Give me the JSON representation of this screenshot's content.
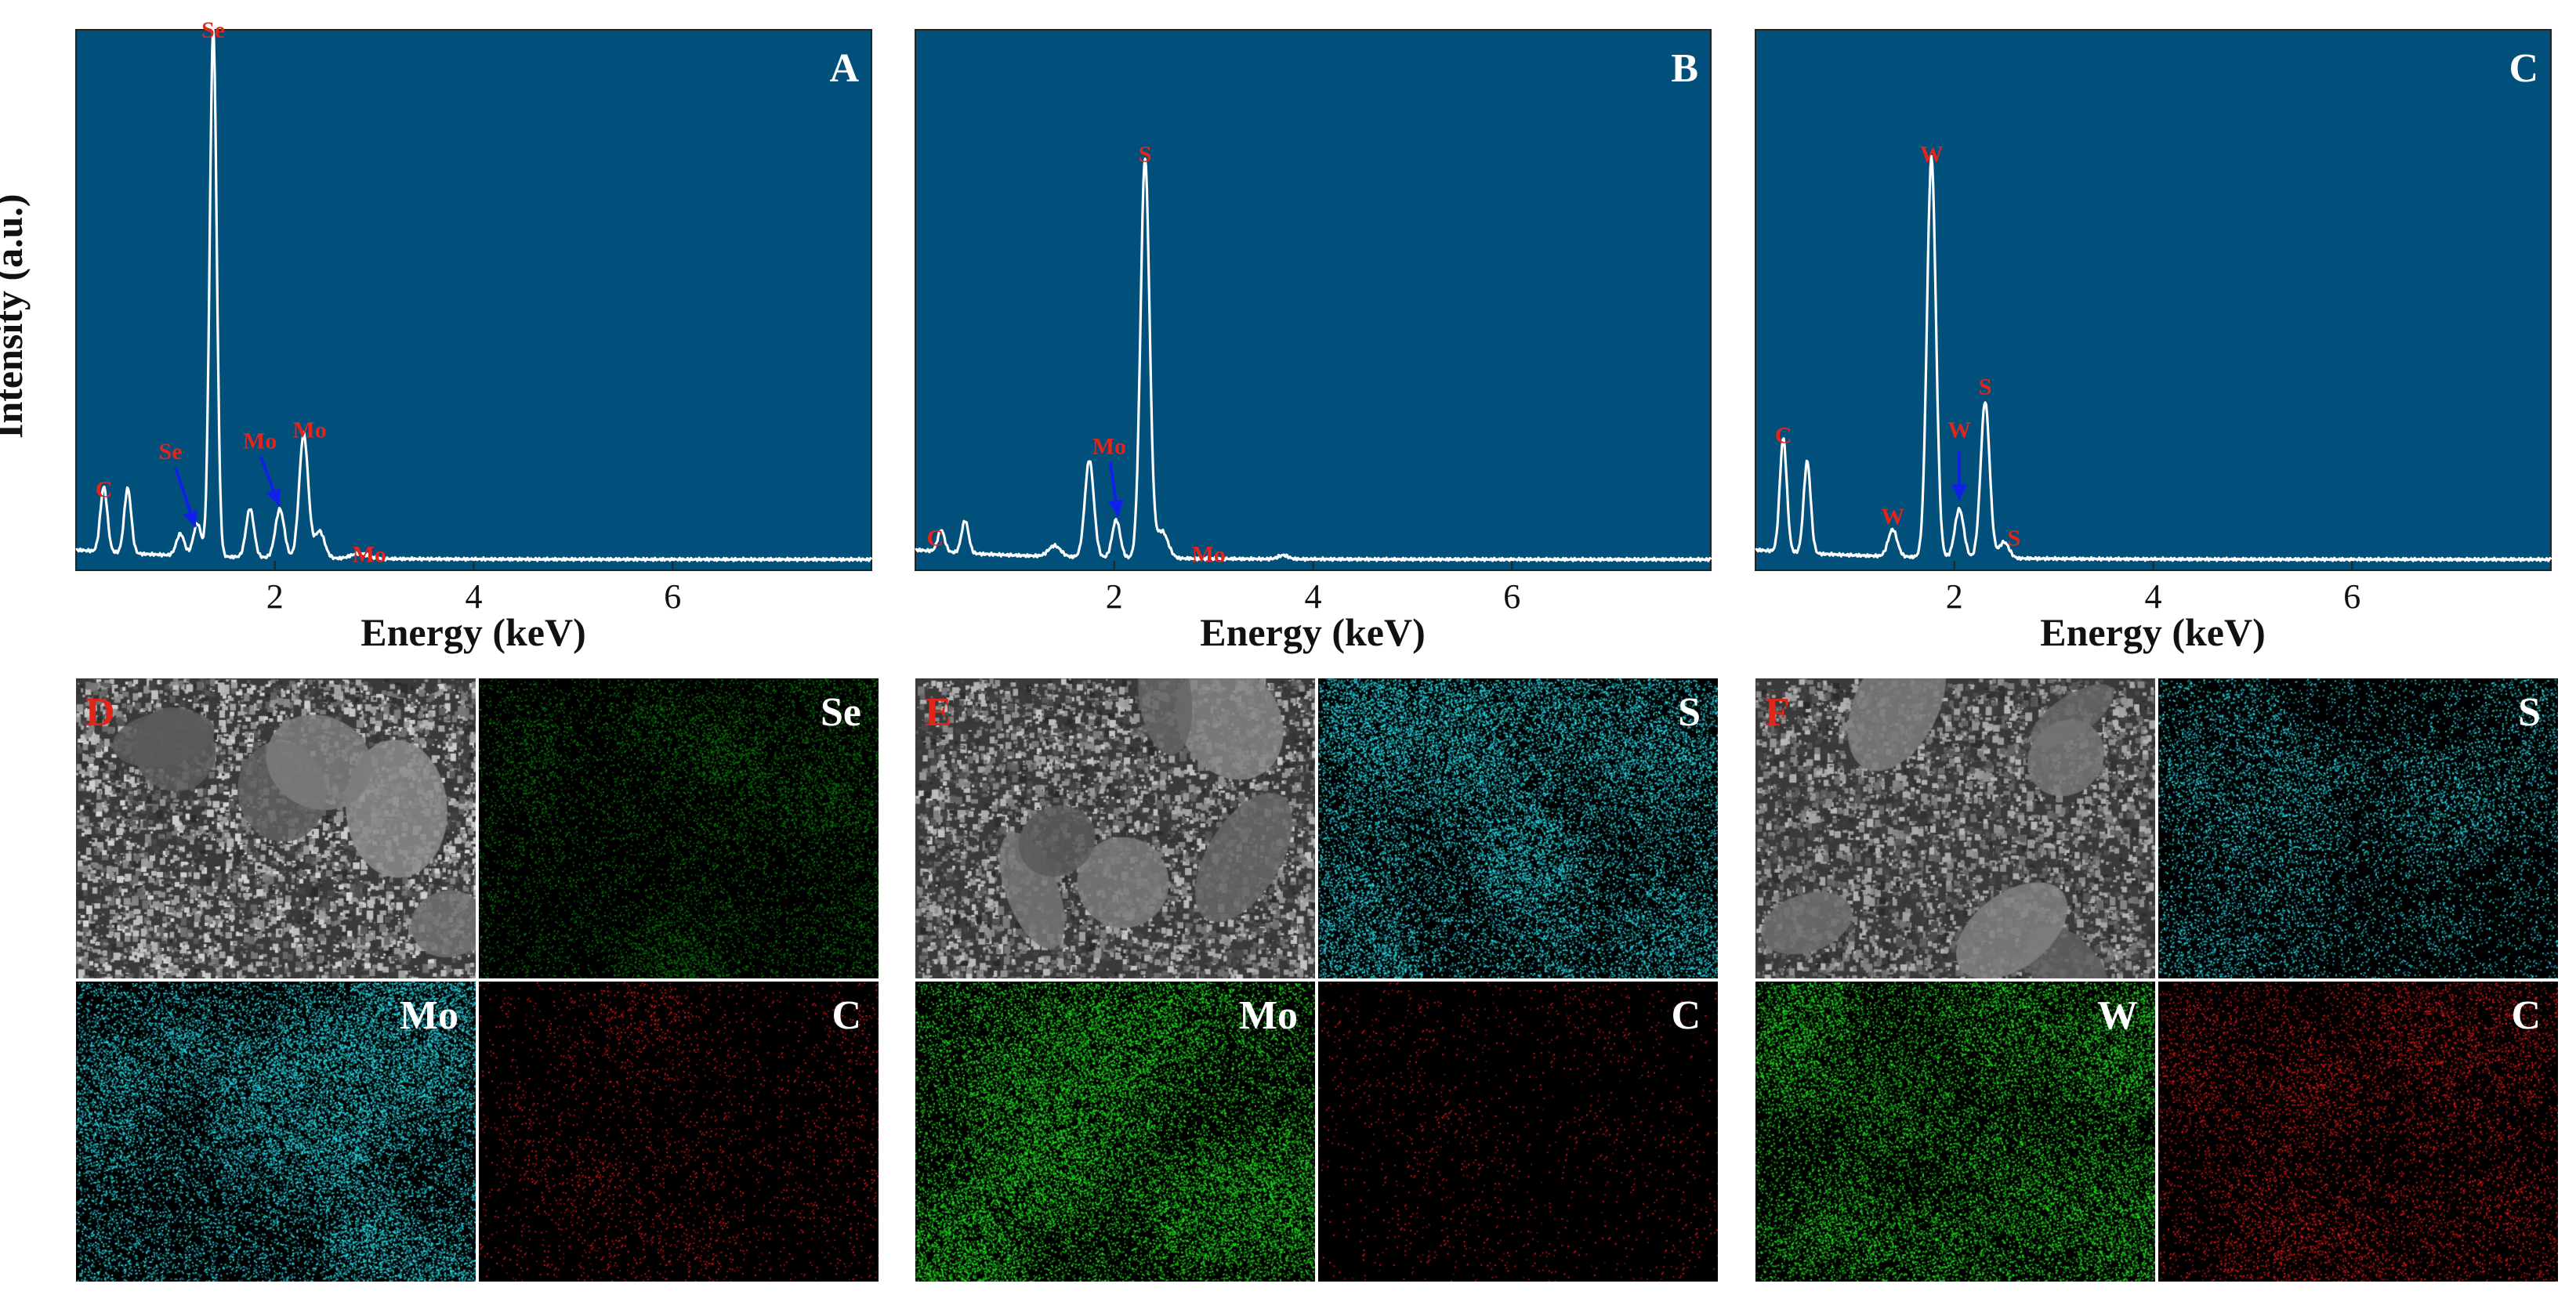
{
  "figure": {
    "y_axis_label": "Intensity (a.u.)",
    "x_axis_label": "Energy (keV)"
  },
  "colors": {
    "plot_bg": "#01507c",
    "spectrum_line": "#ffffff",
    "peak_label": "#e1251b",
    "arrow": "#1020e8",
    "panel_letter": "#ffffff",
    "axis": "#222222",
    "map_green": "#1fe01f",
    "map_cyan": "#27dce8",
    "map_red": "#e81818"
  },
  "chart_data": [
    {
      "type": "line",
      "panel": "A",
      "xlabel": "Energy (keV)",
      "ylabel": "Intensity (a.u.)",
      "xlim": [
        0,
        8
      ],
      "ylim": [
        0,
        1.0
      ],
      "x_ticks": [
        2,
        4,
        6
      ],
      "x_tick_labels": [
        "2",
        "4",
        "6"
      ],
      "baseline": 0.02,
      "peaks": [
        {
          "x": 0.28,
          "h": 0.12,
          "w": 0.035
        },
        {
          "x": 0.52,
          "h": 0.12,
          "w": 0.035
        },
        {
          "x": 1.05,
          "h": 0.04,
          "w": 0.04
        },
        {
          "x": 1.22,
          "h": 0.06,
          "w": 0.04
        },
        {
          "x": 1.38,
          "h": 0.98,
          "w": 0.035
        },
        {
          "x": 1.75,
          "h": 0.09,
          "w": 0.04
        },
        {
          "x": 2.05,
          "h": 0.09,
          "w": 0.045
        },
        {
          "x": 2.29,
          "h": 0.23,
          "w": 0.045
        },
        {
          "x": 2.45,
          "h": 0.05,
          "w": 0.05
        },
        {
          "x": 2.85,
          "h": 0.01,
          "w": 0.08
        }
      ],
      "annotations": [
        {
          "text": "Se",
          "x": 1.38,
          "y": 1.0
        },
        {
          "text": "C",
          "x": 0.28,
          "y": 0.15
        },
        {
          "text": "Se",
          "x": 0.95,
          "y": 0.22
        },
        {
          "text": "Mo",
          "x": 1.85,
          "y": 0.24
        },
        {
          "text": "Mo",
          "x": 2.35,
          "y": 0.26
        },
        {
          "text": "Mo",
          "x": 2.95,
          "y": 0.03
        }
      ],
      "arrows": [
        {
          "from": [
            1.0,
            0.19
          ],
          "to": [
            1.2,
            0.08
          ]
        },
        {
          "from": [
            1.86,
            0.21
          ],
          "to": [
            2.04,
            0.12
          ]
        }
      ]
    },
    {
      "type": "line",
      "panel": "B",
      "xlabel": "Energy (keV)",
      "xlim": [
        0,
        8
      ],
      "ylim": [
        0,
        1.0
      ],
      "x_ticks": [
        2,
        4,
        6
      ],
      "x_tick_labels": [
        "2",
        "4",
        "6"
      ],
      "baseline": 0.02,
      "peaks": [
        {
          "x": 0.26,
          "h": 0.04,
          "w": 0.035
        },
        {
          "x": 0.5,
          "h": 0.06,
          "w": 0.035
        },
        {
          "x": 1.4,
          "h": 0.02,
          "w": 0.06
        },
        {
          "x": 1.75,
          "h": 0.18,
          "w": 0.045
        },
        {
          "x": 2.02,
          "h": 0.07,
          "w": 0.04
        },
        {
          "x": 2.31,
          "h": 0.74,
          "w": 0.045
        },
        {
          "x": 2.48,
          "h": 0.05,
          "w": 0.06
        },
        {
          "x": 3.7,
          "h": 0.007,
          "w": 0.05
        }
      ],
      "annotations": [
        {
          "text": "S",
          "x": 2.31,
          "y": 0.77
        },
        {
          "text": "C",
          "x": 0.2,
          "y": 0.06
        },
        {
          "text": "Mo",
          "x": 1.95,
          "y": 0.23
        },
        {
          "text": "Mo",
          "x": 2.95,
          "y": 0.03
        }
      ],
      "arrows": [
        {
          "from": [
            1.96,
            0.2
          ],
          "to": [
            2.04,
            0.1
          ]
        }
      ]
    },
    {
      "type": "line",
      "panel": "C",
      "xlabel": "Energy (keV)",
      "xlim": [
        0,
        8
      ],
      "ylim": [
        0,
        1.0
      ],
      "x_ticks": [
        2,
        4,
        6
      ],
      "x_tick_labels": [
        "2",
        "4",
        "6"
      ],
      "baseline": 0.02,
      "peaks": [
        {
          "x": 0.28,
          "h": 0.21,
          "w": 0.035
        },
        {
          "x": 0.52,
          "h": 0.17,
          "w": 0.035
        },
        {
          "x": 1.38,
          "h": 0.05,
          "w": 0.045
        },
        {
          "x": 1.77,
          "h": 0.74,
          "w": 0.045
        },
        {
          "x": 2.05,
          "h": 0.09,
          "w": 0.045
        },
        {
          "x": 2.31,
          "h": 0.29,
          "w": 0.045
        },
        {
          "x": 2.5,
          "h": 0.03,
          "w": 0.05
        }
      ],
      "annotations": [
        {
          "text": "W",
          "x": 1.77,
          "y": 0.77
        },
        {
          "text": "C",
          "x": 0.28,
          "y": 0.25
        },
        {
          "text": "W",
          "x": 1.38,
          "y": 0.1
        },
        {
          "text": "W",
          "x": 2.05,
          "y": 0.26
        },
        {
          "text": "S",
          "x": 2.31,
          "y": 0.34
        },
        {
          "text": "S",
          "x": 2.6,
          "y": 0.06
        }
      ],
      "arrows": [
        {
          "from": [
            2.05,
            0.22
          ],
          "to": [
            2.05,
            0.13
          ]
        }
      ]
    }
  ],
  "plot_panels": [
    {
      "letter": "A"
    },
    {
      "letter": "B"
    },
    {
      "letter": "C"
    }
  ],
  "map_groups": [
    {
      "cells": [
        {
          "label": "D",
          "kind": "sem",
          "label_side": "left",
          "tone": "#b9b9b9"
        },
        {
          "label": "Se",
          "kind": "map",
          "label_side": "right",
          "tone": "#0c7a0c",
          "density": 0.45
        },
        {
          "label": "Mo",
          "kind": "map",
          "label_side": "right",
          "tone": "#27dce8",
          "density": 0.8
        },
        {
          "label": "C",
          "kind": "map",
          "label_side": "right",
          "tone": "#e81818",
          "density": 0.12
        }
      ]
    },
    {
      "cells": [
        {
          "label": "E",
          "kind": "sem",
          "label_side": "left",
          "tone": "#a9a9a9"
        },
        {
          "label": "S",
          "kind": "map",
          "label_side": "right",
          "tone": "#27dce8",
          "density": 0.75
        },
        {
          "label": "Mo",
          "kind": "map",
          "label_side": "right",
          "tone": "#1fe01f",
          "density": 0.8
        },
        {
          "label": "C",
          "kind": "map",
          "label_side": "right",
          "tone": "#e81818",
          "density": 0.06
        }
      ]
    },
    {
      "cells": [
        {
          "label": "F",
          "kind": "sem",
          "label_side": "left",
          "tone": "#9a9a9a"
        },
        {
          "label": "S",
          "kind": "map",
          "label_side": "right",
          "tone": "#27dce8",
          "density": 0.4
        },
        {
          "label": "W",
          "kind": "map",
          "label_side": "right",
          "tone": "#1fe01f",
          "density": 0.65
        },
        {
          "label": "C",
          "kind": "map",
          "label_side": "right",
          "tone": "#e81818",
          "density": 0.3
        }
      ]
    }
  ]
}
